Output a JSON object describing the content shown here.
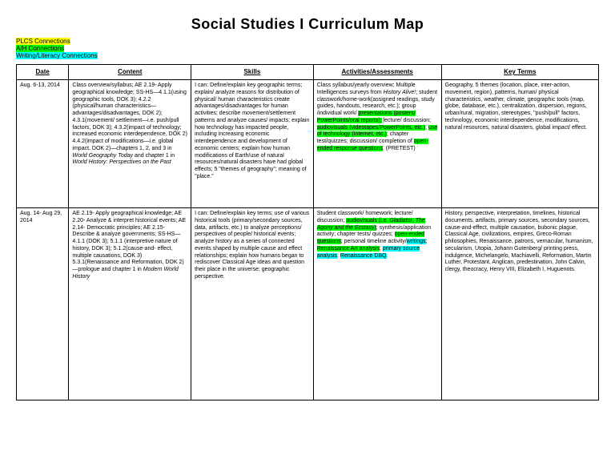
{
  "title": "Social Studies I Curriculum Map",
  "legend": {
    "plcs": "PLCS Connections",
    "ah": "A/H Connections",
    "writing": "Writing/Literacy Connections"
  },
  "columns": [
    "Date",
    "Content",
    "Skills",
    "Activities/Assessments",
    "Key Terms"
  ],
  "rows": [
    {
      "date": "Aug. 6-13, 2014",
      "content": [
        {
          "t": "Class overview/syllabus;  AE 2.19- Apply geographical knowledge; SS-HS—4.1.1(using geographic tools, DOK 3); 4.2.2 (physical/human characteristics—advantages/disadvantages, DOK 2); 4.3.1(movement/ settlement—i.e. push/pull factors, DOK 3); 4.3.2(impact of technology; increased economic interdependence, DOK 2) 4.4.2(impact of modifications—i.e. global impact, DOK 2)—chapters 1, 2, and 3 in "
        },
        {
          "t": "World Geography Today",
          "italic": true
        },
        {
          "t": " and chapter 1 in "
        },
        {
          "t": "World History: Perspectives on the Past",
          "italic": true
        }
      ],
      "skills": "I can: Define/explain key geographic terms; explain/ analyze reasons for distribution of physical/ human characteristics create advantages/disadvantages for human activities; describe movement/settlement patterns and analyze causes/ impacts; explain how technology has impacted people, including increasing economic interdependence and development of economic centers; explain how human modifications of Earth/use of natural resources/natural disasters have had global effects; 5 \"themes of geography\"; meaning of \"place.\"",
      "activities": [
        {
          "t": "Class syllabus/yearly overview; Multiple Intelligences surveys from "
        },
        {
          "t": "History Alive!",
          "italic": true
        },
        {
          "t": "; student classwork/home-work(assigned readings, study guides, handouts, research, etc.); group /individual work/ "
        },
        {
          "t": "presentations (posters/ PowerPoints/oral reports);",
          "hl": "green"
        },
        {
          "t": " lecture/ discussion; "
        },
        {
          "t": "audiovisuals (videotapes/PowerPoints, etc.)",
          "hl": "green"
        },
        {
          "t": "; "
        },
        {
          "t": "use of technology (Internet, etc.)",
          "hl": "green"
        },
        {
          "t": "; chapter test/quizzes; discussion/ completion of "
        },
        {
          "t": "open-ended response questions",
          "hl": "green"
        },
        {
          "t": ".  (PRETEST)"
        }
      ],
      "terms": "Geography, 5 themes (location, place, inter-action, movement, region), patterns, human/ physical characteristics, weather, climate, geographic tools (map, globe, database, etc.), centralization, dispersion, regions, urban/rural, migration, stereotypes, \"push/pull\" factors, technology, economic interdependence, modifications, natural resources, natural disasters, global impact/ effect."
    },
    {
      "date": "Aug. 14- Aug 29, 2014",
      "content": [
        {
          "t": "AE 2.19- Apply geographical knowledge; AE 2.20- Analyze & interpret historical events; AE 2.14- Democratic principles; AE 2.15- Describe & analyze governments; SS-HS—4.1.1 (DOK 3); 5.1.1 (interpretive nature of history, DOK 3); 5.1.2(cause-and- effect, multiple causations, DOK 3) 5.3.1(Renaissance and Reformation, DOK 2)—prologue and chapter 1 in "
        },
        {
          "t": "Modern World History",
          "italic": true
        }
      ],
      "skills": "I can: Define/explain key terms; use of various historical tools (primary/secondary sources, data, artifacts, etc.) to analyze perceptions/ perspectives of people/ historical events; analyze history as a series of connected events shaped by multiple cause and effect relationships; explain how humans began to rediscover Classical Age ideas and question their place in the universe; geographic perspective.",
      "activities": [
        {
          "t": "Student classwork/ homework; lecture/ discussion; "
        },
        {
          "t": "audiovisuals (i.e. ",
          "hl": "green"
        },
        {
          "t": "Gladiator",
          "hl": "green",
          "italic": true
        },
        {
          "t": ", ",
          "hl": "green"
        },
        {
          "t": "The Agony and the Ecstasy",
          "hl": "green",
          "italic": true
        },
        {
          "t": ")",
          "hl": "green"
        },
        {
          "t": "; synthesis/application activity; chapter tests/ quizzes; "
        },
        {
          "t": "open-ended questions",
          "hl": "green"
        },
        {
          "t": "; personal timeline activity/"
        },
        {
          "t": "writings",
          "hl": "cyan"
        },
        {
          "t": "; "
        },
        {
          "t": "Renaissance Art analysis",
          "hl": "green"
        },
        {
          "t": "; "
        },
        {
          "t": "primary source analysis",
          "hl": "cyan"
        },
        {
          "t": "; "
        },
        {
          "t": "Renaissance DBQ",
          "hl": "cyan"
        },
        {
          "t": "."
        }
      ],
      "terms": "History, perspective, interpretation, timelines, historical documents, artifacts, primary sources, secondary sources, cause-and-effect, multiple causation, bubonic plague, Classical Age, civilizations, empires, Greco-Roman philosophies, Renaissance, patrons, vernacular, humanism, secularism, Utopia, Johann Gutenberg/ printing press, indulgence, Michelangelo, Machiavelli, Reformation, Martin Luther, Protestant, Anglican, predestination, John Calvin, clergy, theocracy, Henry VIII, Elizabeth I, Huguenots."
    }
  ],
  "row_min_heights": [
    160,
    240
  ]
}
